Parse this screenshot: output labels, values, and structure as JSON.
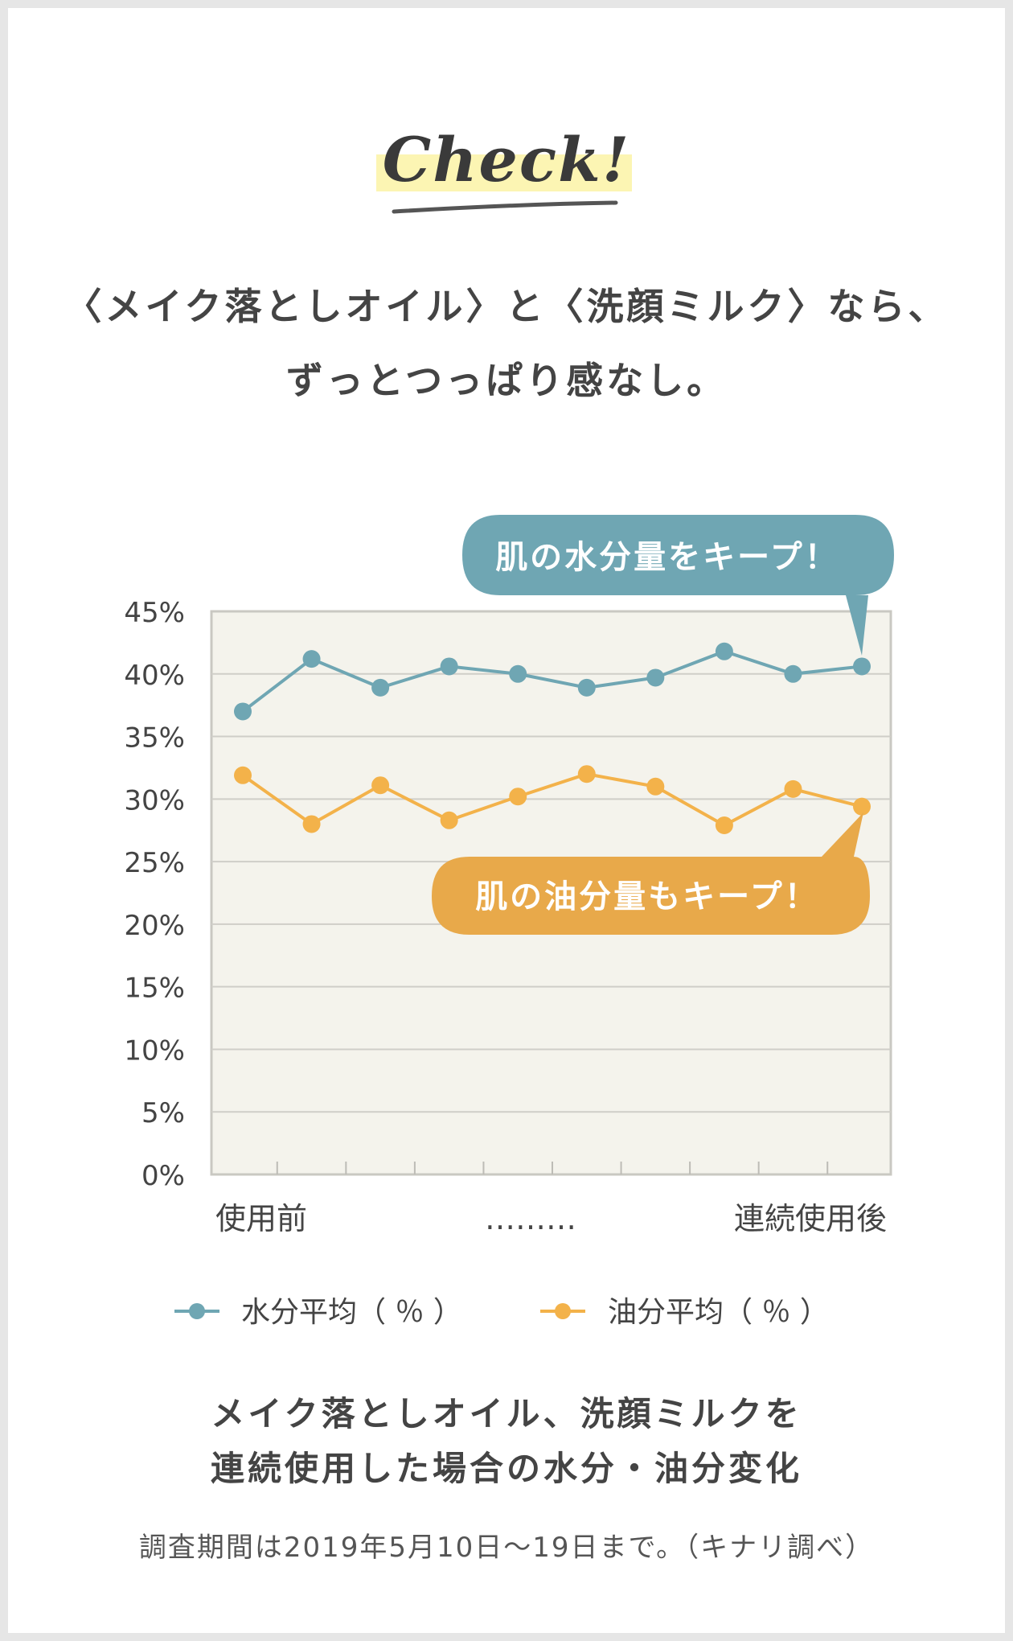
{
  "header": {
    "badge": "Check!",
    "headline_line1": "〈メイク落としオイル〉と〈洗顔ミルク〉なら、",
    "headline_line2": "ずっとつっぱり感なし。"
  },
  "callouts": {
    "moisture": "肌の水分量をキープ！",
    "oil": "肌の油分量もキープ！"
  },
  "chart_data": {
    "type": "line",
    "x": [
      1,
      2,
      3,
      4,
      5,
      6,
      7,
      8,
      9,
      10
    ],
    "x_tick_labels": [
      "使用前",
      "………",
      "連続使用後"
    ],
    "y_tick_labels": [
      "0%",
      "5%",
      "10%",
      "15%",
      "20%",
      "25%",
      "30%",
      "35%",
      "40%",
      "45%"
    ],
    "ylim": [
      0,
      45
    ],
    "grid": true,
    "legend_position": "bottom",
    "series": [
      {
        "name": "水分平均（ ％ ）",
        "color": "#6fa6b3",
        "values": [
          37.0,
          41.2,
          38.9,
          40.6,
          40.0,
          38.9,
          39.7,
          41.8,
          40.0,
          40.6
        ]
      },
      {
        "name": "油分平均（ ％ ）",
        "color": "#f3b24a",
        "values": [
          31.9,
          28.0,
          31.1,
          28.3,
          30.2,
          32.0,
          31.0,
          27.9,
          30.8,
          29.4
        ]
      }
    ]
  },
  "footer": {
    "caption_line1": "メイク落としオイル、洗顔ミルクを",
    "caption_line2": "連続使用した場合の水分・油分変化",
    "note": "調査期間は2019年5月10日〜19日まで。（キナリ調べ）"
  },
  "colors": {
    "plot_background": "#f4f3ec",
    "moisture_callout": "#6fa6b3",
    "oil_callout": "#e8a94a"
  }
}
